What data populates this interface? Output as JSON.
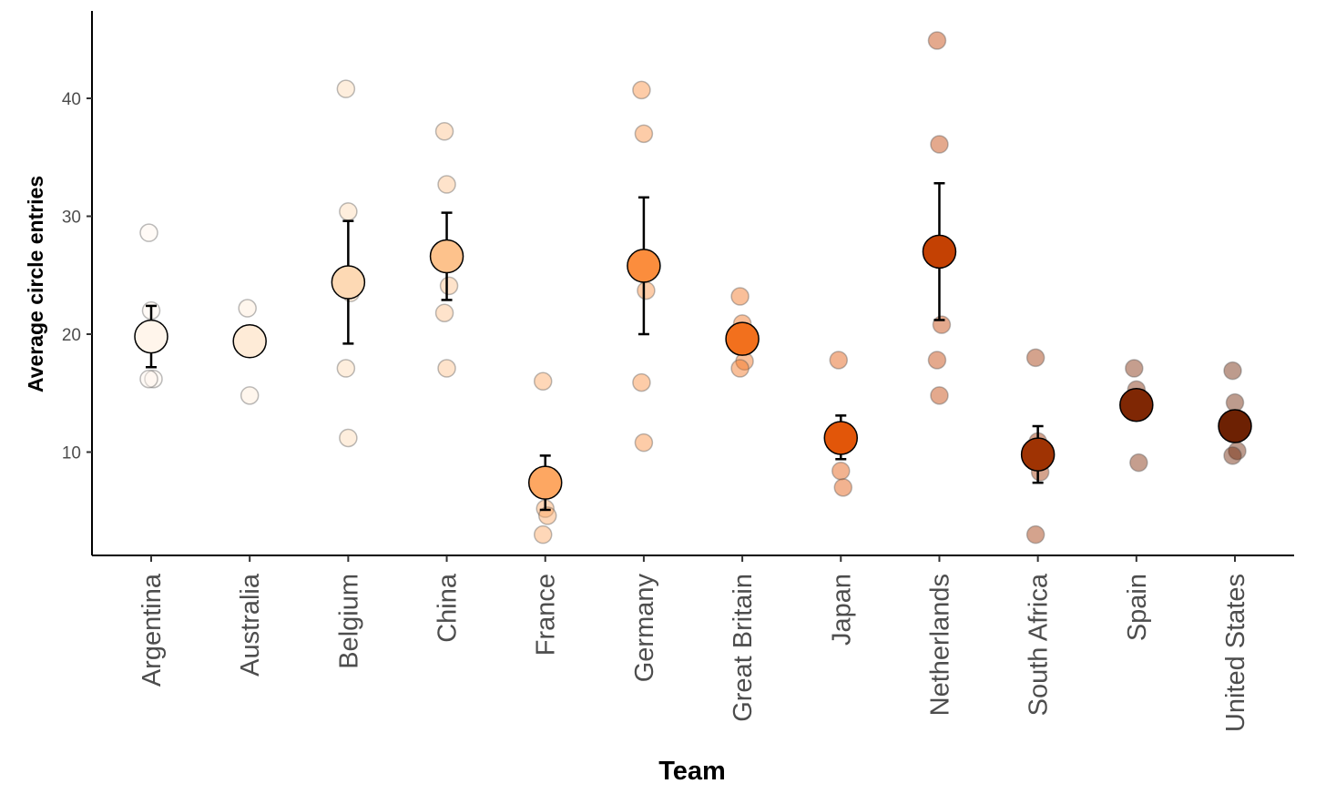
{
  "chart_data": {
    "type": "scatter",
    "title": "",
    "xlabel": "Team",
    "ylabel": "Average circle entries",
    "ylim": [
      1,
      47
    ],
    "yticks": [
      10,
      20,
      30,
      40
    ],
    "grid": false,
    "legend": "none",
    "categories": [
      "Argentina",
      "Australia",
      "Belgium",
      "China",
      "France",
      "Germany",
      "Great Britain",
      "Japan",
      "Netherlands",
      "South Africa",
      "Spain",
      "United States"
    ],
    "colors": [
      "#fff5eb",
      "#feebd7",
      "#fdd9b4",
      "#fdc28c",
      "#fda762",
      "#fb8d3d",
      "#f2701d",
      "#e25609",
      "#c44103",
      "#9f3303",
      "#7f2704",
      "#6d2103"
    ],
    "points": [
      {
        "team": "Argentina",
        "values": [
          28.6,
          22.0,
          16.2,
          16.2
        ]
      },
      {
        "team": "Australia",
        "values": [
          22.2,
          14.8
        ]
      },
      {
        "team": "Belgium",
        "values": [
          40.8,
          30.4,
          23.5,
          17.1,
          11.2
        ]
      },
      {
        "team": "China",
        "values": [
          37.2,
          32.7,
          24.1,
          21.8,
          17.1
        ]
      },
      {
        "team": "France",
        "values": [
          16.0,
          5.2,
          4.6,
          3.0
        ]
      },
      {
        "team": "Germany",
        "values": [
          40.7,
          37.0,
          23.7,
          15.9,
          10.8
        ]
      },
      {
        "team": "Great Britain",
        "values": [
          23.2,
          20.9,
          17.7,
          17.1
        ]
      },
      {
        "team": "Japan",
        "values": [
          17.8,
          8.4,
          7.0
        ]
      },
      {
        "team": "Netherlands",
        "values": [
          44.9,
          36.1,
          20.8,
          17.8,
          14.8
        ]
      },
      {
        "team": "South Africa",
        "values": [
          18.0,
          10.9,
          8.3,
          3.0
        ]
      },
      {
        "team": "Spain",
        "values": [
          17.1,
          15.3,
          9.1
        ]
      },
      {
        "team": "United States",
        "values": [
          16.9,
          14.2,
          10.1,
          9.7
        ]
      }
    ],
    "summary": [
      {
        "team": "Argentina",
        "mean": 19.8,
        "lower": 17.2,
        "upper": 22.4
      },
      {
        "team": "Australia",
        "mean": 19.4
      },
      {
        "team": "Belgium",
        "mean": 24.4,
        "lower": 19.2,
        "upper": 29.6
      },
      {
        "team": "China",
        "mean": 26.6,
        "lower": 22.9,
        "upper": 30.3
      },
      {
        "team": "France",
        "mean": 7.4,
        "lower": 5.1,
        "upper": 9.7
      },
      {
        "team": "Germany",
        "mean": 25.8,
        "lower": 20.0,
        "upper": 31.6
      },
      {
        "team": "Great Britain",
        "mean": 19.6
      },
      {
        "team": "Japan",
        "mean": 11.2,
        "lower": 9.4,
        "upper": 13.1
      },
      {
        "team": "Netherlands",
        "mean": 27.0,
        "lower": 21.2,
        "upper": 32.8
      },
      {
        "team": "South Africa",
        "mean": 9.8,
        "lower": 7.4,
        "upper": 12.2
      },
      {
        "team": "Spain",
        "mean": 14.0
      },
      {
        "team": "United States",
        "mean": 12.2
      }
    ]
  }
}
